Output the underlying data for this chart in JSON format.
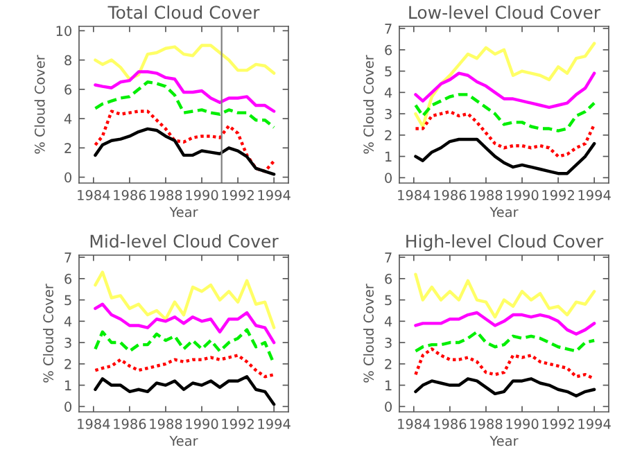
{
  "chart_data": [
    {
      "type": "line",
      "title": "Total Cloud Cover",
      "xlabel": "Year",
      "ylabel": "% Cloud Cover",
      "grid": false,
      "legend": false,
      "x": [
        1984.1,
        1984.5,
        1985,
        1985.5,
        1986,
        1986.5,
        1987,
        1987.5,
        1988,
        1988.5,
        1989,
        1989.5,
        1990,
        1990.5,
        1991,
        1991.5,
        1992,
        1992.5,
        1993,
        1993.5,
        1994
      ],
      "xlim": [
        1983.2,
        1994.8
      ],
      "xticks": [
        1984,
        1986,
        1988,
        1990,
        1992,
        1994
      ],
      "ylim": [
        -0.4,
        10.3
      ],
      "yticks": [
        0,
        2,
        4,
        6,
        8,
        10
      ],
      "ref_lines": [
        {
          "axis": "x",
          "value": 1991.1,
          "color": "#808080",
          "line_style": "solid"
        }
      ],
      "series": [
        {
          "color": "#ffff66",
          "line_style": "solid",
          "values": [
            8.0,
            7.7,
            8.0,
            7.5,
            6.7,
            7.0,
            8.4,
            8.5,
            8.8,
            8.9,
            8.4,
            8.3,
            9.0,
            9.0,
            8.5,
            8.0,
            7.3,
            7.3,
            7.7,
            7.6,
            7.1
          ]
        },
        {
          "color": "#ff00ff",
          "line_style": "solid",
          "values": [
            6.3,
            6.2,
            6.1,
            6.5,
            6.6,
            7.2,
            7.2,
            7.1,
            6.8,
            6.7,
            5.8,
            5.8,
            5.9,
            5.4,
            5.1,
            5.4,
            5.4,
            5.5,
            4.9,
            4.9,
            4.5
          ]
        },
        {
          "color": "#00ee00",
          "line_style": "dashed",
          "values": [
            4.7,
            5.0,
            5.2,
            5.4,
            5.5,
            6.0,
            6.5,
            6.4,
            6.2,
            5.6,
            4.4,
            4.5,
            4.6,
            4.4,
            4.3,
            4.6,
            4.4,
            4.4,
            3.9,
            3.9,
            3.4
          ]
        },
        {
          "color": "#ff0000",
          "line_style": "dotted",
          "values": [
            2.2,
            2.8,
            4.5,
            4.3,
            4.4,
            4.5,
            4.5,
            3.9,
            3.3,
            2.5,
            2.4,
            2.7,
            2.8,
            2.8,
            2.7,
            3.5,
            3.0,
            1.5,
            0.6,
            0.4,
            1.1
          ]
        },
        {
          "color": "#000000",
          "line_style": "solid",
          "values": [
            1.5,
            2.2,
            2.5,
            2.6,
            2.8,
            3.1,
            3.3,
            3.2,
            2.8,
            2.5,
            1.5,
            1.5,
            1.8,
            1.7,
            1.6,
            2.0,
            1.8,
            1.4,
            0.6,
            0.4,
            0.2
          ]
        }
      ]
    },
    {
      "type": "line",
      "title": "Low-level Cloud Cover",
      "xlabel": "Year",
      "ylabel": "% Cloud Cover",
      "grid": false,
      "legend": false,
      "x": [
        1984.1,
        1984.5,
        1985,
        1985.5,
        1986,
        1986.5,
        1987,
        1987.5,
        1988,
        1988.5,
        1989,
        1989.5,
        1990,
        1990.5,
        1991,
        1991.5,
        1992,
        1992.5,
        1993,
        1993.5,
        1994
      ],
      "xlim": [
        1983.2,
        1994.8
      ],
      "xticks": [
        1984,
        1986,
        1988,
        1990,
        1992,
        1994
      ],
      "ylim": [
        -0.25,
        7.1
      ],
      "yticks": [
        0,
        1,
        2,
        3,
        4,
        5,
        6,
        7
      ],
      "series": [
        {
          "color": "#ffff66",
          "line_style": "solid",
          "values": [
            3.0,
            2.4,
            3.8,
            4.4,
            4.8,
            5.3,
            5.8,
            5.6,
            6.1,
            5.8,
            6.0,
            4.8,
            5.0,
            4.9,
            4.8,
            4.6,
            5.2,
            4.9,
            5.6,
            5.7,
            6.3
          ]
        },
        {
          "color": "#ff00ff",
          "line_style": "solid",
          "values": [
            3.9,
            3.6,
            4.0,
            4.4,
            4.6,
            4.9,
            4.8,
            4.5,
            4.3,
            4.0,
            3.7,
            3.7,
            3.6,
            3.5,
            3.4,
            3.3,
            3.4,
            3.5,
            3.9,
            4.2,
            4.9
          ]
        },
        {
          "color": "#00ee00",
          "line_style": "dashed",
          "values": [
            3.4,
            2.9,
            3.4,
            3.6,
            3.8,
            3.9,
            3.9,
            3.6,
            3.3,
            3.0,
            2.5,
            2.6,
            2.6,
            2.4,
            2.3,
            2.3,
            2.2,
            2.3,
            2.9,
            3.1,
            3.5
          ]
        },
        {
          "color": "#ff0000",
          "line_style": "dotted",
          "values": [
            2.3,
            2.3,
            2.9,
            3.0,
            3.1,
            2.9,
            3.0,
            2.6,
            2.1,
            1.6,
            1.4,
            1.5,
            1.5,
            1.4,
            1.5,
            1.4,
            1.0,
            1.1,
            1.4,
            1.6,
            2.5
          ]
        },
        {
          "color": "#000000",
          "line_style": "solid",
          "values": [
            1.0,
            0.8,
            1.2,
            1.4,
            1.7,
            1.8,
            1.8,
            1.8,
            1.4,
            1.0,
            0.7,
            0.5,
            0.6,
            0.5,
            0.4,
            0.3,
            0.2,
            0.2,
            0.6,
            1.0,
            1.6
          ]
        }
      ]
    },
    {
      "type": "line",
      "title": "Mid-level Cloud Cover",
      "xlabel": "Year",
      "ylabel": "% Cloud Cover",
      "grid": false,
      "legend": false,
      "x": [
        1984.1,
        1984.5,
        1985,
        1985.5,
        1986,
        1986.5,
        1987,
        1987.5,
        1988,
        1988.5,
        1989,
        1989.5,
        1990,
        1990.5,
        1991,
        1991.5,
        1992,
        1992.5,
        1993,
        1993.5,
        1994
      ],
      "xlim": [
        1983.2,
        1994.8
      ],
      "xticks": [
        1984,
        1986,
        1988,
        1990,
        1992,
        1994
      ],
      "ylim": [
        -0.25,
        7.1
      ],
      "yticks": [
        0,
        1,
        2,
        3,
        4,
        5,
        6,
        7
      ],
      "series": [
        {
          "color": "#ffff66",
          "line_style": "solid",
          "values": [
            5.7,
            6.3,
            5.1,
            5.2,
            4.6,
            4.8,
            4.3,
            4.5,
            4.1,
            4.9,
            4.3,
            5.6,
            5.4,
            5.7,
            5.0,
            5.4,
            4.9,
            5.9,
            4.8,
            4.9,
            3.7
          ]
        },
        {
          "color": "#ff00ff",
          "line_style": "solid",
          "values": [
            4.6,
            4.8,
            4.3,
            4.1,
            3.8,
            3.8,
            3.7,
            4.1,
            4.0,
            4.2,
            3.9,
            4.2,
            4.0,
            4.1,
            3.5,
            4.1,
            4.1,
            4.4,
            3.8,
            3.7,
            3.0
          ]
        },
        {
          "color": "#00ee00",
          "line_style": "dashed",
          "values": [
            2.7,
            3.5,
            3.0,
            3.0,
            2.6,
            2.9,
            2.9,
            3.4,
            3.1,
            3.3,
            2.7,
            3.1,
            2.7,
            3.1,
            2.6,
            3.0,
            3.2,
            3.6,
            2.8,
            3.0,
            2.0
          ]
        },
        {
          "color": "#ff0000",
          "line_style": "dotted",
          "values": [
            1.7,
            1.8,
            1.9,
            2.2,
            1.9,
            1.7,
            1.8,
            1.9,
            2.0,
            2.2,
            2.1,
            2.2,
            2.2,
            2.3,
            2.2,
            2.3,
            2.4,
            2.1,
            1.7,
            1.4,
            1.5
          ]
        },
        {
          "color": "#000000",
          "line_style": "solid",
          "values": [
            0.8,
            1.3,
            1.0,
            1.0,
            0.7,
            0.8,
            0.7,
            1.1,
            1.0,
            1.2,
            0.8,
            1.1,
            1.0,
            1.2,
            0.9,
            1.2,
            1.2,
            1.4,
            0.8,
            0.7,
            0.1
          ]
        }
      ]
    },
    {
      "type": "line",
      "title": "High-level Cloud Cover",
      "xlabel": "Year",
      "ylabel": "% Cloud Cover",
      "grid": false,
      "legend": false,
      "x": [
        1984.1,
        1984.5,
        1985,
        1985.5,
        1986,
        1986.5,
        1987,
        1987.5,
        1988,
        1988.5,
        1989,
        1989.5,
        1990,
        1990.5,
        1991,
        1991.5,
        1992,
        1992.5,
        1993,
        1993.5,
        1994
      ],
      "xlim": [
        1983.2,
        1994.8
      ],
      "xticks": [
        1984,
        1986,
        1988,
        1990,
        1992,
        1994
      ],
      "ylim": [
        -0.25,
        7.1
      ],
      "yticks": [
        0,
        1,
        2,
        3,
        4,
        5,
        6,
        7
      ],
      "series": [
        {
          "color": "#ffff66",
          "line_style": "solid",
          "values": [
            6.2,
            5.0,
            5.6,
            5.0,
            5.4,
            5.0,
            5.9,
            5.0,
            4.9,
            4.2,
            5.0,
            4.7,
            5.4,
            5.0,
            5.3,
            4.6,
            4.7,
            4.3,
            4.9,
            4.8,
            5.4
          ]
        },
        {
          "color": "#ff00ff",
          "line_style": "solid",
          "values": [
            3.8,
            3.9,
            3.9,
            3.9,
            4.1,
            4.1,
            4.3,
            4.4,
            4.1,
            3.8,
            4.0,
            4.3,
            4.3,
            4.2,
            4.3,
            4.2,
            4.0,
            3.6,
            3.4,
            3.6,
            3.9
          ]
        },
        {
          "color": "#00ee00",
          "line_style": "dashed",
          "values": [
            2.6,
            2.8,
            2.9,
            2.9,
            3.0,
            3.0,
            3.2,
            3.5,
            3.0,
            2.8,
            2.9,
            3.3,
            3.2,
            3.3,
            3.2,
            3.0,
            2.8,
            2.7,
            2.6,
            3.0,
            3.1
          ]
        },
        {
          "color": "#ff0000",
          "line_style": "dotted",
          "values": [
            1.5,
            2.4,
            2.7,
            2.4,
            2.2,
            2.2,
            2.3,
            2.1,
            1.6,
            1.5,
            1.6,
            2.4,
            2.3,
            2.4,
            2.1,
            2.0,
            1.9,
            1.8,
            1.4,
            1.5,
            1.3
          ]
        },
        {
          "color": "#000000",
          "line_style": "solid",
          "values": [
            0.7,
            1.0,
            1.2,
            1.1,
            1.0,
            1.0,
            1.3,
            1.2,
            0.9,
            0.6,
            0.7,
            1.2,
            1.2,
            1.3,
            1.1,
            1.0,
            0.8,
            0.7,
            0.5,
            0.7,
            0.8
          ]
        }
      ]
    }
  ]
}
